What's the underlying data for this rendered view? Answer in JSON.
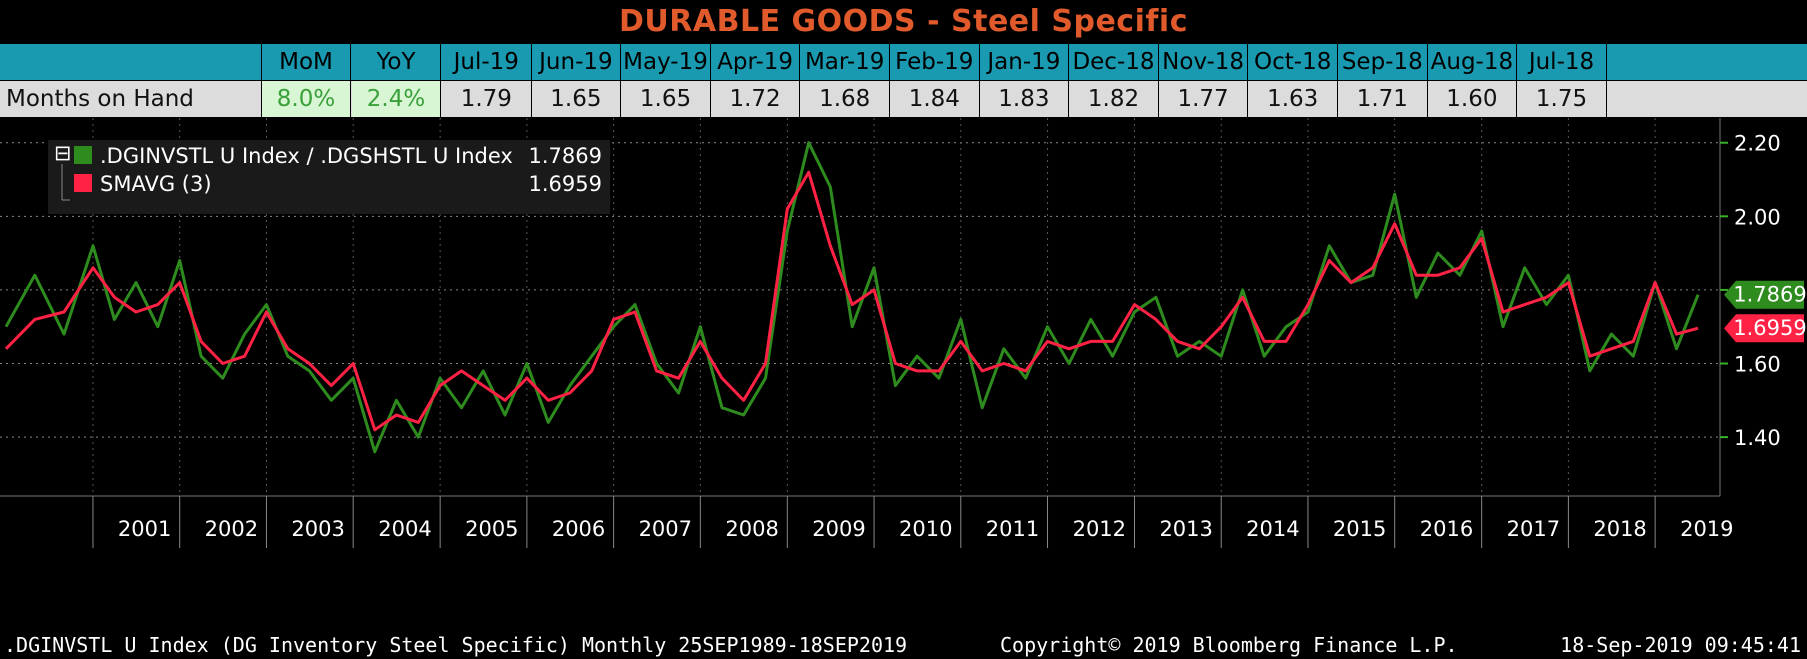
{
  "title": "DURABLE GOODS - Steel Specific",
  "table": {
    "row_label": "Months on Hand",
    "mom_label": "MoM",
    "yoy_label": "YoY",
    "mom_value": "8.0%",
    "yoy_value": "2.4%",
    "months": [
      "Jul-19",
      "Jun-19",
      "May-19",
      "Apr-19",
      "Mar-19",
      "Feb-19",
      "Jan-19",
      "Dec-18",
      "Nov-18",
      "Oct-18",
      "Sep-18",
      "Aug-18",
      "Jul-18"
    ],
    "values": [
      "1.79",
      "1.65",
      "1.65",
      "1.72",
      "1.68",
      "1.84",
      "1.83",
      "1.82",
      "1.77",
      "1.63",
      "1.71",
      "1.60",
      "1.75"
    ]
  },
  "legend": {
    "series1_name": ".DGINVSTL U Index / .DGSHSTL U Index",
    "series1_value": "1.7869",
    "series2_name": "SMAVG (3)",
    "series2_value": "1.6959"
  },
  "colors": {
    "series1": "#2e8b1e",
    "series2": "#ff2244",
    "title": "#e05a2b",
    "header": "#1a9ab0"
  },
  "footer": {
    "left": ".DGINVSTL U Index (DG Inventory Steel Specific)  Monthly 25SEP1989-18SEP2019",
    "copyright": "Copyright© 2019 Bloomberg Finance L.P.",
    "timestamp": "18-Sep-2019 09:45:41"
  },
  "chart_data": {
    "type": "line",
    "title": "",
    "xlabel": "",
    "ylabel": "",
    "ylim": [
      1.24,
      2.24
    ],
    "yticks": [
      "1.40",
      "1.60",
      "1.80",
      "2.00",
      "2.20"
    ],
    "categories": [
      "2001",
      "2002",
      "2003",
      "2004",
      "2005",
      "2006",
      "2007",
      "2008",
      "2009",
      "2010",
      "2011",
      "2012",
      "2013",
      "2014",
      "2015",
      "2016",
      "2017",
      "2018",
      "2019"
    ],
    "series": [
      {
        "name": ".DGINVSTL U Index / .DGSHSTL U Index",
        "last_value": "1.7869",
        "x": [
          "2000-01",
          "2000-05",
          "2000-09",
          "2001-01",
          "2001-04",
          "2001-07",
          "2001-10",
          "2002-01",
          "2002-04",
          "2002-07",
          "2002-10",
          "2003-01",
          "2003-04",
          "2003-07",
          "2003-10",
          "2004-01",
          "2004-04",
          "2004-07",
          "2004-10",
          "2005-01",
          "2005-04",
          "2005-07",
          "2005-10",
          "2006-01",
          "2006-04",
          "2006-07",
          "2006-10",
          "2007-01",
          "2007-04",
          "2007-07",
          "2007-10",
          "2008-01",
          "2008-04",
          "2008-07",
          "2008-10",
          "2009-01",
          "2009-04",
          "2009-07",
          "2009-10",
          "2010-01",
          "2010-04",
          "2010-07",
          "2010-10",
          "2011-01",
          "2011-04",
          "2011-07",
          "2011-10",
          "2012-01",
          "2012-04",
          "2012-07",
          "2012-10",
          "2013-01",
          "2013-04",
          "2013-07",
          "2013-10",
          "2014-01",
          "2014-04",
          "2014-07",
          "2014-10",
          "2015-01",
          "2015-04",
          "2015-07",
          "2015-10",
          "2016-01",
          "2016-04",
          "2016-07",
          "2016-10",
          "2017-01",
          "2017-04",
          "2017-07",
          "2017-10",
          "2018-01",
          "2018-04",
          "2018-07",
          "2018-10",
          "2019-01",
          "2019-04",
          "2019-07"
        ],
        "values": [
          1.7,
          1.84,
          1.68,
          1.92,
          1.72,
          1.82,
          1.7,
          1.88,
          1.62,
          1.56,
          1.68,
          1.76,
          1.62,
          1.58,
          1.5,
          1.56,
          1.36,
          1.5,
          1.4,
          1.56,
          1.48,
          1.58,
          1.46,
          1.6,
          1.44,
          1.54,
          1.62,
          1.7,
          1.76,
          1.6,
          1.52,
          1.7,
          1.48,
          1.46,
          1.56,
          1.96,
          2.2,
          2.08,
          1.7,
          1.86,
          1.54,
          1.62,
          1.56,
          1.72,
          1.48,
          1.64,
          1.56,
          1.7,
          1.6,
          1.72,
          1.62,
          1.74,
          1.78,
          1.62,
          1.66,
          1.62,
          1.8,
          1.62,
          1.7,
          1.74,
          1.92,
          1.82,
          1.84,
          2.06,
          1.78,
          1.9,
          1.84,
          1.96,
          1.7,
          1.86,
          1.76,
          1.84,
          1.58,
          1.68,
          1.62,
          1.82,
          1.64,
          1.7869
        ]
      },
      {
        "name": "SMAVG (3)",
        "last_value": "1.6959",
        "x": [
          "2000-01",
          "2000-05",
          "2000-09",
          "2001-01",
          "2001-04",
          "2001-07",
          "2001-10",
          "2002-01",
          "2002-04",
          "2002-07",
          "2002-10",
          "2003-01",
          "2003-04",
          "2003-07",
          "2003-10",
          "2004-01",
          "2004-04",
          "2004-07",
          "2004-10",
          "2005-01",
          "2005-04",
          "2005-07",
          "2005-10",
          "2006-01",
          "2006-04",
          "2006-07",
          "2006-10",
          "2007-01",
          "2007-04",
          "2007-07",
          "2007-10",
          "2008-01",
          "2008-04",
          "2008-07",
          "2008-10",
          "2009-01",
          "2009-04",
          "2009-07",
          "2009-10",
          "2010-01",
          "2010-04",
          "2010-07",
          "2010-10",
          "2011-01",
          "2011-04",
          "2011-07",
          "2011-10",
          "2012-01",
          "2012-04",
          "2012-07",
          "2012-10",
          "2013-01",
          "2013-04",
          "2013-07",
          "2013-10",
          "2014-01",
          "2014-04",
          "2014-07",
          "2014-10",
          "2015-01",
          "2015-04",
          "2015-07",
          "2015-10",
          "2016-01",
          "2016-04",
          "2016-07",
          "2016-10",
          "2017-01",
          "2017-04",
          "2017-07",
          "2017-10",
          "2018-01",
          "2018-04",
          "2018-07",
          "2018-10",
          "2019-01",
          "2019-04",
          "2019-07"
        ],
        "values": [
          1.64,
          1.72,
          1.74,
          1.86,
          1.78,
          1.74,
          1.76,
          1.82,
          1.66,
          1.6,
          1.62,
          1.74,
          1.64,
          1.6,
          1.54,
          1.6,
          1.42,
          1.46,
          1.44,
          1.54,
          1.58,
          1.54,
          1.5,
          1.56,
          1.5,
          1.52,
          1.58,
          1.72,
          1.74,
          1.58,
          1.56,
          1.66,
          1.56,
          1.5,
          1.6,
          2.02,
          2.12,
          1.92,
          1.76,
          1.8,
          1.6,
          1.58,
          1.58,
          1.66,
          1.58,
          1.6,
          1.58,
          1.66,
          1.64,
          1.66,
          1.66,
          1.76,
          1.72,
          1.66,
          1.64,
          1.7,
          1.78,
          1.66,
          1.66,
          1.76,
          1.88,
          1.82,
          1.86,
          1.98,
          1.84,
          1.84,
          1.86,
          1.94,
          1.74,
          1.76,
          1.78,
          1.82,
          1.62,
          1.64,
          1.66,
          1.82,
          1.68,
          1.6959
        ]
      }
    ],
    "legend_position": "top-left",
    "grid": true
  }
}
